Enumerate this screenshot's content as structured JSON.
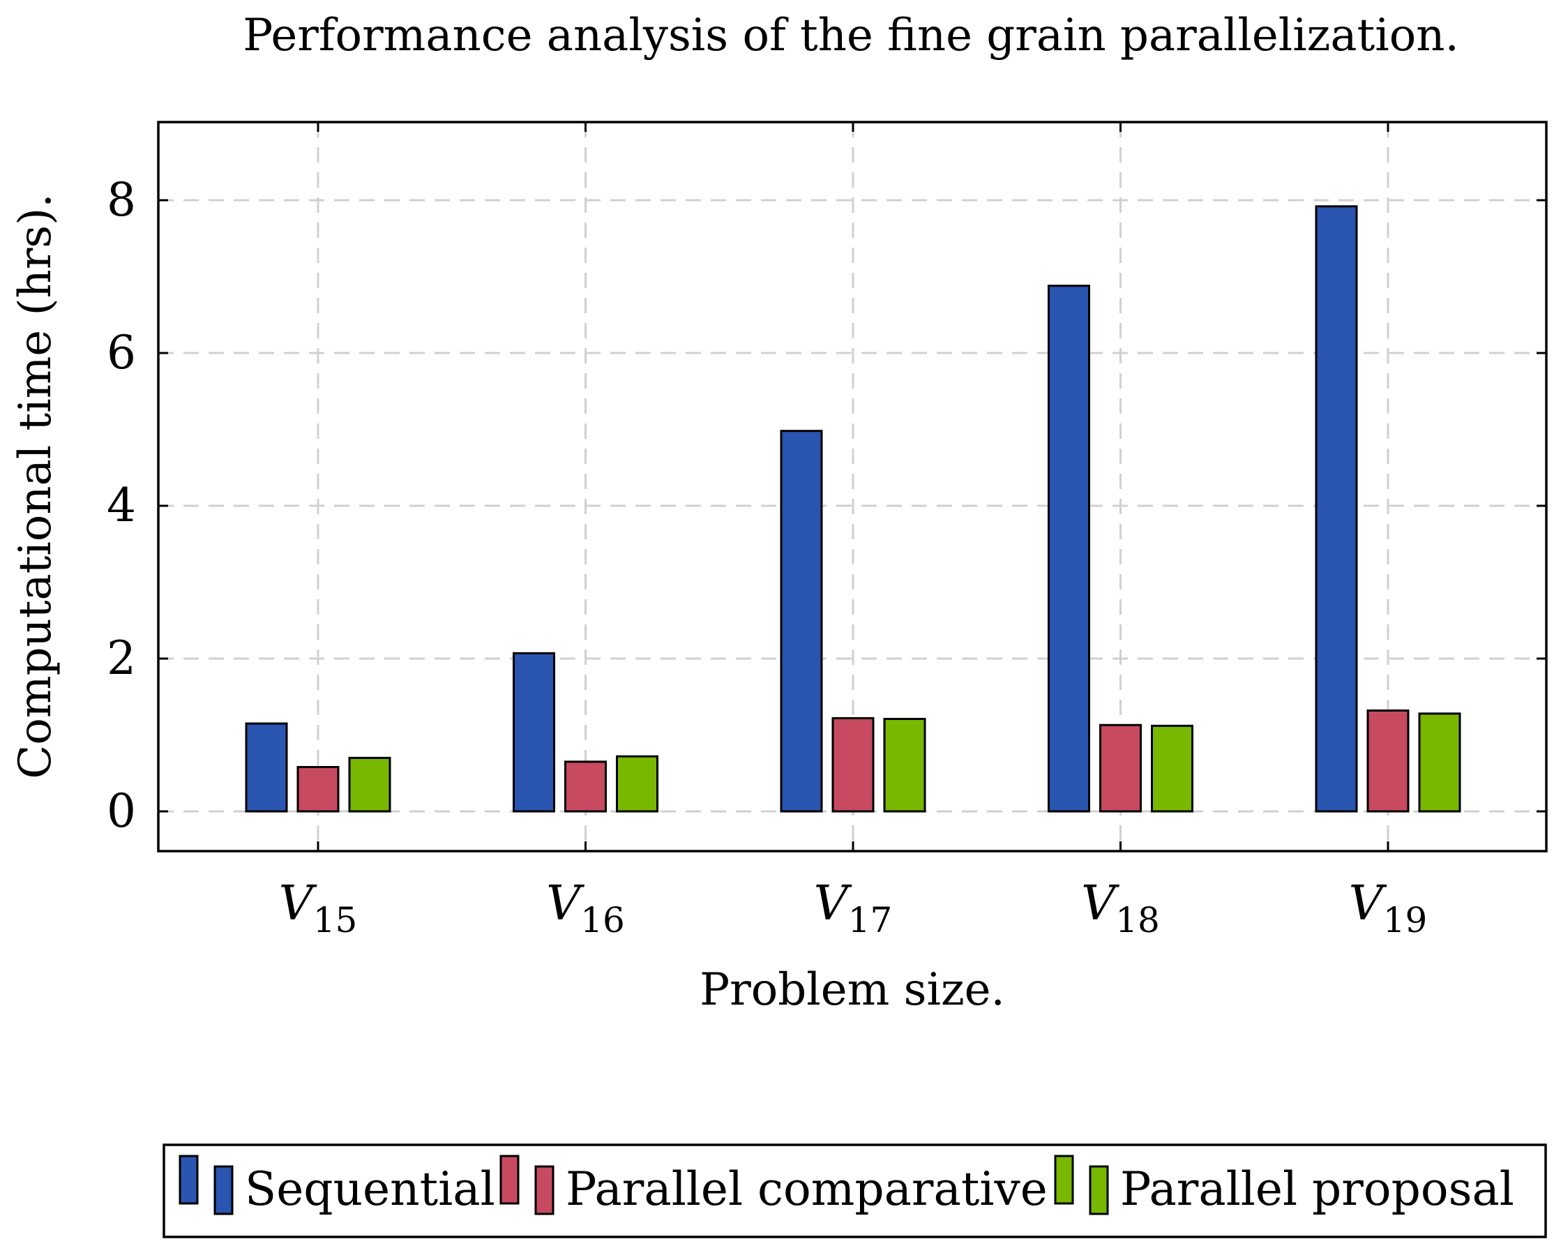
{
  "chart_data": {
    "type": "bar",
    "title": "Performance analysis of the fine grain parallelization.",
    "xlabel": "Problem size.",
    "ylabel": "Computational time (hrs).",
    "categories": [
      {
        "base": "V",
        "sub": "15"
      },
      {
        "base": "V",
        "sub": "16"
      },
      {
        "base": "V",
        "sub": "17"
      },
      {
        "base": "V",
        "sub": "18"
      },
      {
        "base": "V",
        "sub": "19"
      }
    ],
    "ylim": [
      -0.5,
      9
    ],
    "yticks": [
      0,
      2,
      4,
      6,
      8
    ],
    "grid": true,
    "legend_position": "bottom",
    "series": [
      {
        "name": "Sequential",
        "color": "#2a55b0",
        "values": [
          1.15,
          2.07,
          4.98,
          6.88,
          7.92
        ]
      },
      {
        "name": "Parallel comparative",
        "color": "#c74a60",
        "values": [
          0.58,
          0.65,
          1.22,
          1.13,
          1.32
        ]
      },
      {
        "name": "Parallel proposal",
        "color": "#78b800",
        "values": [
          0.7,
          0.72,
          1.21,
          1.12,
          1.28
        ]
      }
    ]
  }
}
